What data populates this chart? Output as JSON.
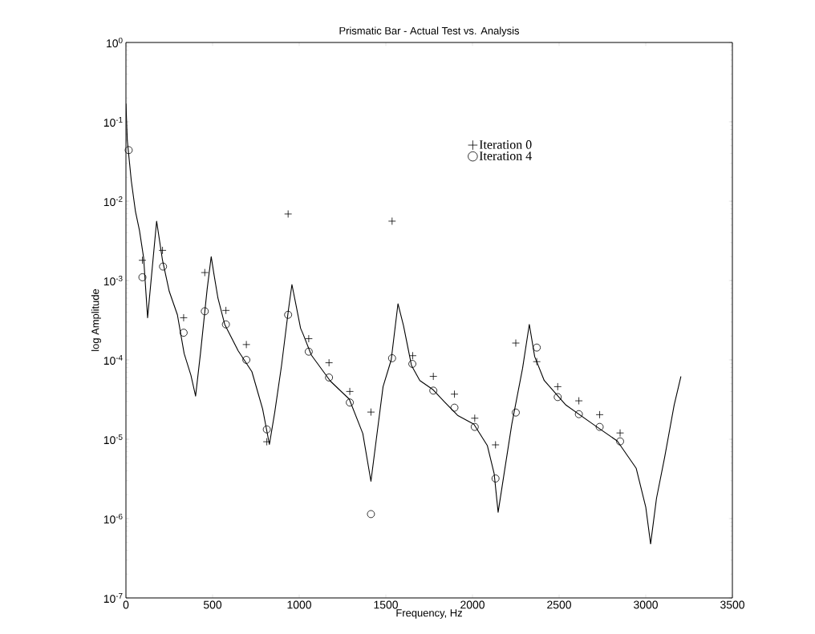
{
  "chart_data": {
    "type": "scatter",
    "title": "Prismatic Bar - Actual Test vs. Analysis",
    "xlabel": "Frequency, Hz",
    "ylabel": "log Amplitude",
    "log": "y",
    "legend": "top right",
    "xlim": [
      0,
      3500
    ],
    "xticks": [
      0,
      500,
      1000,
      1500,
      2000,
      2500,
      3000,
      3500
    ],
    "ylim": [
      1e-07,
      1
    ],
    "yticks": [
      {
        "value": 1e-07,
        "label": "10$^{-7}$"
      },
      {
        "value": 1e-06,
        "label": "10$^{-6}$"
      },
      {
        "value": 1e-05,
        "label": "10$^{-5}$"
      },
      {
        "value": 0.0001,
        "label": "10$^{-4}$"
      },
      {
        "value": 0.001,
        "label": "10$^{-3}$"
      },
      {
        "value": 0.01,
        "label": "10$^{-2}$"
      },
      {
        "value": 0.1,
        "label": "10$^{-1}$"
      },
      {
        "value": 1,
        "label": "10$^{0}$"
      }
    ],
    "series": [
      {
        "type": "line",
        "color": "#000000",
        "marker": "none",
        "line_style": "solid",
        "x": [
          0,
          8,
          31,
          55,
          78,
          102,
          125,
          177,
          211,
          250,
          297,
          336,
          375,
          402,
          430,
          469,
          492,
          508,
          531,
          570,
          648,
          727,
          789,
          828,
          859,
          898,
          938,
          958,
          977,
          1008,
          1023,
          1070,
          1180,
          1289,
          1367,
          1414,
          1445,
          1484,
          1531,
          1570,
          1602,
          1648,
          1696,
          1773,
          1836,
          1914,
          2008,
          2086,
          2125,
          2148,
          2180,
          2227,
          2289,
          2328,
          2359,
          2414,
          2539,
          2695,
          2836,
          2945,
          3000,
          3028,
          3062,
          3109,
          3164,
          3203
        ],
        "values": [
          0.17,
          0.058,
          0.018,
          0.0074,
          0.0043,
          0.00195,
          0.00034,
          0.0056,
          0.0018,
          0.00073,
          0.00037,
          0.00012,
          6.4e-05,
          3.5e-05,
          0.00012,
          0.00079,
          0.002,
          0.0012,
          0.0006,
          0.00028,
          0.00013,
          7.1e-05,
          2.4e-05,
          8.6e-06,
          2.2e-05,
          8.5e-05,
          0.00043,
          0.00089,
          0.00055,
          0.00025,
          0.00021,
          0.000115,
          5.4e-05,
          3.2e-05,
          1.18e-05,
          2.95e-06,
          1e-05,
          4.6e-05,
          0.0001,
          0.00051,
          0.00027,
          8.5e-05,
          5.5e-05,
          4.2e-05,
          3e-05,
          2e-05,
          1.55e-05,
          8.3e-06,
          3.7e-06,
          1.2e-06,
          3.4e-06,
          1.55e-05,
          7.8e-05,
          0.00028,
          0.00011,
          5.5e-05,
          2.7e-05,
          1.55e-05,
          9.5e-06,
          4.3e-06,
          1.4e-06,
          4.8e-07,
          1.8e-06,
          5.9e-06,
          2.7e-05,
          6.2e-05
        ]
      },
      {
        "name": "Iteration 0",
        "color": "#000000",
        "marker": "cross",
        "x": [
          95,
          211,
          333,
          455,
          577,
          695,
          813,
          936,
          1055,
          1172,
          1292,
          1414,
          1536,
          1655,
          1774,
          1896,
          2013,
          2133,
          2250,
          2371,
          2492,
          2614,
          2734,
          2852
        ],
        "values": [
          0.0018,
          0.0024,
          0.00034,
          0.00126,
          0.00042,
          0.000156,
          9.3e-06,
          0.0069,
          0.000185,
          9.2e-05,
          4e-05,
          2.2e-05,
          0.0056,
          0.000113,
          6.2e-05,
          3.7e-05,
          1.84e-05,
          8.5e-06,
          0.000163,
          9.5e-05,
          4.6e-05,
          3.05e-05,
          2.04e-05,
          1.2e-05
        ]
      },
      {
        "name": "Iteration 4",
        "color": "#000000",
        "marker": "circle",
        "x": [
          16,
          95,
          214,
          333,
          455,
          577,
          695,
          813,
          936,
          1055,
          1172,
          1292,
          1414,
          1536,
          1653,
          1774,
          1896,
          2013,
          2133,
          2250,
          2371,
          2492,
          2614,
          2734,
          2852
        ],
        "values": [
          0.044,
          0.0011,
          0.0015,
          0.00022,
          0.00041,
          0.00028,
          0.0001,
          1.33e-05,
          0.00037,
          0.000127,
          6e-05,
          2.9e-05,
          1.14e-06,
          0.000105,
          8.9e-05,
          4.1e-05,
          2.5e-05,
          1.43e-05,
          3.2e-06,
          2.17e-05,
          0.000143,
          3.4e-05,
          2.07e-05,
          1.43e-05,
          9.4e-06
        ]
      }
    ]
  }
}
